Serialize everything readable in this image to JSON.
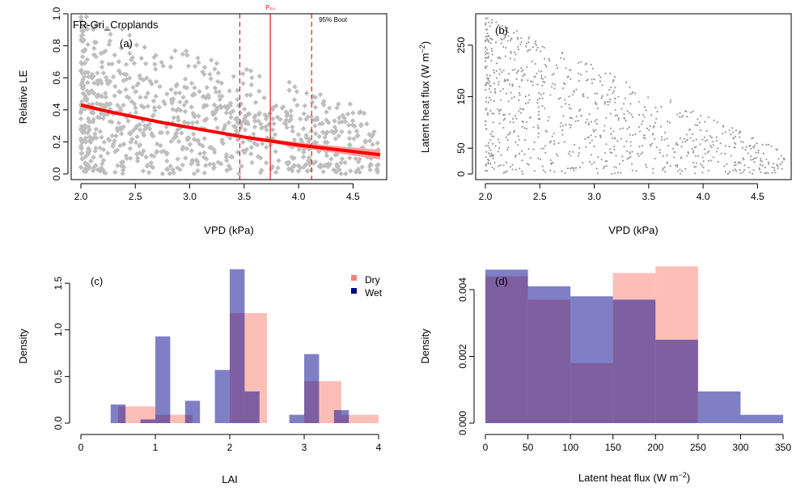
{
  "colors": {
    "points_a": "#bebebe",
    "points_b": "#9a9a9a",
    "fit_line": "#ff0000",
    "ci_band": "#f4a4a4",
    "p_line": "#e31a1c",
    "dry": "#fa8072",
    "wet": "#00008b"
  },
  "chart_data": [
    {
      "type": "scatter",
      "panel_label": "(a)",
      "site_label": "FR-Gri_Croplands",
      "xlabel": "VPD (kPa)",
      "ylabel": "Relative LE",
      "xlim": [
        2.0,
        4.75
      ],
      "ylim": [
        0.0,
        1.0
      ],
      "xticks": [
        "2.0",
        "2.5",
        "3.0",
        "3.5",
        "4.0",
        "4.5"
      ],
      "yticks": [
        "0.0",
        "0.2",
        "0.4",
        "0.6",
        "0.8",
        "1.0"
      ],
      "fit": {
        "x": [
          2.0,
          2.25,
          2.5,
          2.75,
          3.0,
          3.25,
          3.5,
          3.75,
          4.0,
          4.25,
          4.5,
          4.75
        ],
        "y": [
          0.43,
          0.39,
          0.355,
          0.32,
          0.29,
          0.26,
          0.23,
          0.205,
          0.18,
          0.16,
          0.14,
          0.12
        ],
        "ci_lower": [
          0.415,
          0.38,
          0.345,
          0.31,
          0.282,
          0.252,
          0.22,
          0.193,
          0.163,
          0.14,
          0.115,
          0.09
        ],
        "ci_upper": [
          0.445,
          0.4,
          0.365,
          0.33,
          0.298,
          0.268,
          0.24,
          0.217,
          0.197,
          0.18,
          0.165,
          0.15
        ]
      },
      "vlines": [
        {
          "x": 3.46,
          "style": "dashed"
        },
        {
          "x": 3.74,
          "style": "solid",
          "label": "P₅₀"
        },
        {
          "x": 4.12,
          "style": "dashed",
          "label": "95% Boot"
        }
      ]
    },
    {
      "type": "scatter",
      "panel_label": "(b)",
      "xlabel": "VPD (kPa)",
      "ylabel_main": "Latent heat flux (W m",
      "ylabel_sup": "−2",
      "ylabel_end": ")",
      "xlim": [
        2.0,
        4.75
      ],
      "ylim": [
        0,
        310
      ],
      "xticks": [
        "2.0",
        "2.5",
        "3.0",
        "3.5",
        "4.0",
        "4.5"
      ],
      "yticks": [
        "0",
        "50",
        "150",
        "250"
      ]
    },
    {
      "type": "bar",
      "panel_label": "(c)",
      "xlabel": "LAI",
      "ylabel": "Density",
      "xlim": [
        0,
        4
      ],
      "ylim": [
        0,
        1.7
      ],
      "xticks": [
        "0",
        "1",
        "2",
        "3",
        "4"
      ],
      "yticks": [
        "0.0",
        "0.5",
        "1.0",
        "1.5"
      ],
      "legend": "top-right",
      "series": [
        {
          "name": "Dry",
          "bins": [
            [
              0.5,
              0.75,
              0.18
            ],
            [
              0.75,
              1.0,
              0.18
            ],
            [
              1.0,
              1.25,
              0.09
            ],
            [
              1.25,
              1.5,
              0.09
            ],
            [
              2.0,
              2.25,
              1.18
            ],
            [
              2.25,
              2.5,
              1.18
            ],
            [
              3.0,
              3.25,
              0.45
            ],
            [
              3.25,
              3.5,
              0.45
            ],
            [
              3.5,
              3.75,
              0.09
            ],
            [
              3.75,
              4.0,
              0.09
            ]
          ]
        },
        {
          "name": "Wet",
          "bins": [
            [
              0.4,
              0.6,
              0.2
            ],
            [
              0.8,
              1.0,
              0.04
            ],
            [
              1.0,
              1.2,
              0.93
            ],
            [
              1.4,
              1.6,
              0.24
            ],
            [
              1.8,
              2.0,
              0.57
            ],
            [
              2.0,
              2.2,
              1.65
            ],
            [
              2.2,
              2.4,
              0.34
            ],
            [
              2.8,
              3.0,
              0.09
            ],
            [
              3.0,
              3.2,
              0.74
            ],
            [
              3.4,
              3.6,
              0.14
            ]
          ]
        }
      ]
    },
    {
      "type": "bar",
      "panel_label": "(d)",
      "xlabel_main": "Latent heat flux (W m",
      "xlabel_sup": "−2",
      "xlabel_end": ")",
      "ylabel": "Density",
      "xlim": [
        0,
        350
      ],
      "ylim": [
        0,
        0.0048
      ],
      "xticks": [
        "0",
        "50",
        "100",
        "150",
        "200",
        "250",
        "300",
        "350"
      ],
      "yticks": [
        "0.000",
        "0.002",
        "0.004"
      ],
      "series": [
        {
          "name": "Dry",
          "bins": [
            [
              0,
              50,
              0.0044
            ],
            [
              50,
              100,
              0.0037
            ],
            [
              100,
              150,
              0.0018
            ],
            [
              150,
              200,
              0.0045
            ],
            [
              200,
              250,
              0.0047
            ]
          ]
        },
        {
          "name": "Wet",
          "bins": [
            [
              0,
              50,
              0.0046
            ],
            [
              50,
              100,
              0.0041
            ],
            [
              100,
              150,
              0.0038
            ],
            [
              150,
              200,
              0.0037
            ],
            [
              200,
              250,
              0.0025
            ],
            [
              250,
              300,
              0.00095
            ],
            [
              300,
              350,
              0.00025
            ]
          ]
        }
      ]
    }
  ]
}
